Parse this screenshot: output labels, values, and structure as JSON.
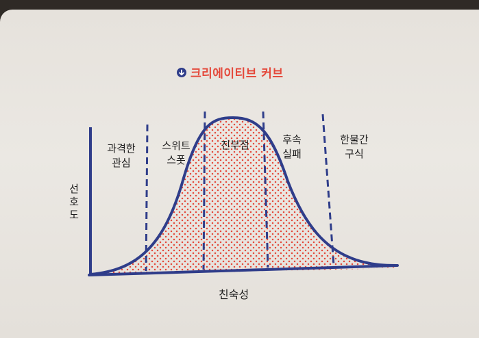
{
  "title": "크리에이티브 커브",
  "title_icon": "down-arrow-circle-icon",
  "colors": {
    "title": "#e4483a",
    "curve": "#2f3d8a",
    "dots": "#e4483a",
    "divider": "#2f3d8a"
  },
  "axes": {
    "y_label": [
      "선",
      "호",
      "도"
    ],
    "x_label": "친숙성"
  },
  "regions": [
    {
      "lines": [
        "과격한",
        "관심"
      ]
    },
    {
      "lines": [
        "스위트",
        "스폿"
      ]
    },
    {
      "lines": [
        "진부점"
      ]
    },
    {
      "lines": [
        "후속",
        "실패"
      ]
    },
    {
      "lines": [
        "한물간",
        "구식"
      ]
    }
  ]
}
